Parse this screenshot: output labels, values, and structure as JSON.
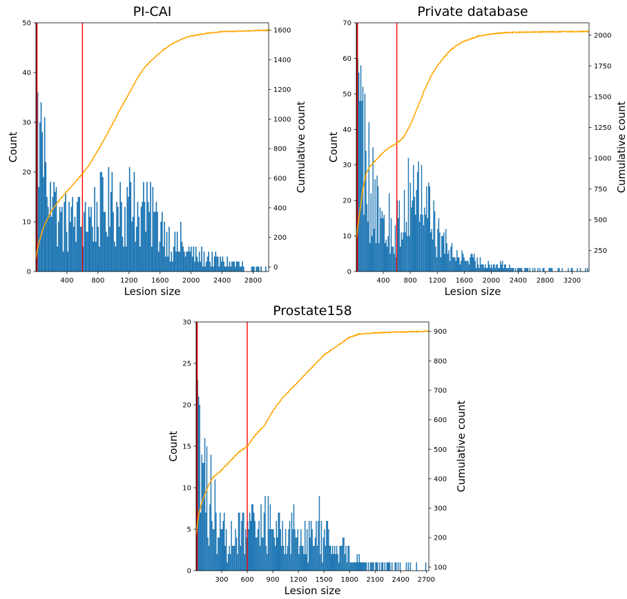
{
  "chart_data": [
    {
      "type": "bar",
      "title": "PI-CAI",
      "xlabel": "Lesion size",
      "ylabel": "Count",
      "y2label": "Cumulative count",
      "xlim": [
        0,
        3000
      ],
      "ylim": [
        0,
        50
      ],
      "y2lim": [
        -30,
        1650
      ],
      "xticks": [
        400,
        800,
        1200,
        1600,
        2000,
        2400,
        2800
      ],
      "yticks": [
        0,
        10,
        20,
        30,
        40,
        50
      ],
      "y2ticks": [
        0,
        200,
        400,
        600,
        800,
        1000,
        1200,
        1400,
        1600
      ],
      "bar_color": "#1f77b4",
      "cumulative_color": "#ffa500",
      "threshold_color": "#ff0000",
      "threshold_lines": [
        0,
        600
      ],
      "bin_width": 15,
      "histogram": [
        [
          0,
          30
        ],
        [
          300,
          10
        ],
        [
          600,
          10
        ],
        [
          900,
          13
        ],
        [
          1200,
          12
        ],
        [
          1500,
          11
        ],
        [
          1800,
          5
        ],
        [
          2100,
          3
        ],
        [
          2400,
          2
        ],
        [
          2700,
          1
        ],
        [
          3000,
          0.8
        ]
      ],
      "spikes": [
        [
          15,
          36
        ],
        [
          45,
          30
        ],
        [
          75,
          28
        ],
        [
          120,
          22
        ],
        [
          180,
          18
        ],
        [
          240,
          16
        ],
        [
          420,
          14
        ],
        [
          540,
          15
        ],
        [
          630,
          14
        ],
        [
          960,
          16
        ],
        [
          1080,
          18
        ],
        [
          1200,
          21
        ],
        [
          1260,
          20
        ],
        [
          1380,
          18
        ],
        [
          1500,
          17
        ],
        [
          1620,
          12
        ],
        [
          1860,
          10
        ],
        [
          2220,
          4
        ]
      ],
      "cumulative": [
        [
          0,
          60
        ],
        [
          30,
          150
        ],
        [
          100,
          270
        ],
        [
          200,
          380
        ],
        [
          300,
          450
        ],
        [
          400,
          510
        ],
        [
          500,
          570
        ],
        [
          600,
          630
        ],
        [
          700,
          700
        ],
        [
          800,
          790
        ],
        [
          900,
          880
        ],
        [
          1000,
          980
        ],
        [
          1100,
          1080
        ],
        [
          1200,
          1170
        ],
        [
          1300,
          1270
        ],
        [
          1400,
          1350
        ],
        [
          1500,
          1400
        ],
        [
          1600,
          1450
        ],
        [
          1700,
          1490
        ],
        [
          1800,
          1520
        ],
        [
          1900,
          1545
        ],
        [
          2000,
          1560
        ],
        [
          2200,
          1580
        ],
        [
          2400,
          1590
        ],
        [
          2700,
          1595
        ],
        [
          3000,
          1600
        ]
      ]
    },
    {
      "type": "bar",
      "title": "Private database",
      "xlabel": "Lesion size",
      "ylabel": "Count",
      "y2label": "Cumulative count",
      "xlim": [
        0,
        3450
      ],
      "ylim": [
        0,
        70
      ],
      "y2lim": [
        80,
        2100
      ],
      "xticks": [
        400,
        800,
        1200,
        1600,
        2000,
        2400,
        2800,
        3200
      ],
      "yticks": [
        0,
        10,
        20,
        30,
        40,
        50,
        60,
        70
      ],
      "y2ticks": [
        250,
        500,
        750,
        1000,
        1250,
        1500,
        1750,
        2000
      ],
      "bar_color": "#1f77b4",
      "cumulative_color": "#ffa500",
      "threshold_color": "#ff0000",
      "threshold_lines": [
        0,
        600
      ],
      "bin_width": 15,
      "histogram": [
        [
          0,
          45
        ],
        [
          200,
          22
        ],
        [
          400,
          10
        ],
        [
          600,
          12
        ],
        [
          800,
          22
        ],
        [
          1000,
          20
        ],
        [
          1200,
          10
        ],
        [
          1400,
          5
        ],
        [
          1700,
          3
        ],
        [
          2000,
          2
        ],
        [
          2400,
          1
        ],
        [
          2800,
          0.5
        ],
        [
          3450,
          0.3
        ]
      ],
      "spikes": [
        [
          15,
          60
        ],
        [
          30,
          56
        ],
        [
          60,
          58
        ],
        [
          90,
          52
        ],
        [
          120,
          50
        ],
        [
          180,
          42
        ],
        [
          240,
          35
        ],
        [
          300,
          27
        ],
        [
          480,
          22
        ],
        [
          840,
          30
        ],
        [
          900,
          28
        ],
        [
          960,
          30
        ],
        [
          1080,
          24
        ],
        [
          1140,
          20
        ],
        [
          1320,
          12
        ]
      ],
      "cumulative": [
        [
          0,
          350
        ],
        [
          40,
          520
        ],
        [
          100,
          760
        ],
        [
          150,
          880
        ],
        [
          200,
          930
        ],
        [
          300,
          990
        ],
        [
          400,
          1050
        ],
        [
          500,
          1090
        ],
        [
          600,
          1120
        ],
        [
          700,
          1170
        ],
        [
          800,
          1270
        ],
        [
          900,
          1400
        ],
        [
          1000,
          1540
        ],
        [
          1100,
          1660
        ],
        [
          1200,
          1750
        ],
        [
          1300,
          1820
        ],
        [
          1400,
          1880
        ],
        [
          1500,
          1920
        ],
        [
          1600,
          1950
        ],
        [
          1700,
          1970
        ],
        [
          1800,
          1990
        ],
        [
          2000,
          2010
        ],
        [
          2200,
          2020
        ],
        [
          2600,
          2025
        ],
        [
          3450,
          2030
        ]
      ]
    },
    {
      "type": "bar",
      "title": "Prostate158",
      "xlabel": "Lesion size",
      "ylabel": "Count",
      "y2label": "Cumulative count",
      "xlim": [
        0,
        2730
      ],
      "ylim": [
        0,
        30
      ],
      "y2lim": [
        88,
        932
      ],
      "xticks": [
        300,
        600,
        900,
        1200,
        1500,
        1800,
        2100,
        2400,
        2700
      ],
      "yticks": [
        0,
        5,
        10,
        15,
        20,
        25,
        30
      ],
      "y2ticks": [
        100,
        200,
        300,
        400,
        500,
        600,
        700,
        800,
        900
      ],
      "bar_color": "#1f77b4",
      "cumulative_color": "#ffa500",
      "threshold_color": "#ff0000",
      "threshold_lines": [
        0,
        600
      ],
      "bin_width": 12,
      "histogram": [
        [
          0,
          16
        ],
        [
          100,
          8
        ],
        [
          200,
          4
        ],
        [
          400,
          4
        ],
        [
          600,
          5
        ],
        [
          900,
          5
        ],
        [
          1200,
          4
        ],
        [
          1500,
          4
        ],
        [
          1800,
          2
        ],
        [
          2000,
          1
        ],
        [
          2300,
          0.7
        ],
        [
          2500,
          0.3
        ],
        [
          2730,
          0
        ]
      ],
      "spikes": [
        [
          12,
          23
        ],
        [
          24,
          21
        ],
        [
          36,
          20
        ],
        [
          60,
          14
        ],
        [
          96,
          16
        ],
        [
          120,
          15
        ],
        [
          168,
          14
        ],
        [
          216,
          11
        ],
        [
          804,
          9
        ],
        [
          840,
          9
        ],
        [
          1440,
          9
        ],
        [
          1140,
          8
        ]
      ],
      "cumulative": [
        [
          0,
          210
        ],
        [
          30,
          280
        ],
        [
          80,
          330
        ],
        [
          150,
          380
        ],
        [
          200,
          405
        ],
        [
          300,
          430
        ],
        [
          400,
          460
        ],
        [
          500,
          490
        ],
        [
          600,
          510
        ],
        [
          700,
          550
        ],
        [
          800,
          580
        ],
        [
          900,
          630
        ],
        [
          1000,
          670
        ],
        [
          1100,
          700
        ],
        [
          1200,
          730
        ],
        [
          1300,
          760
        ],
        [
          1400,
          790
        ],
        [
          1500,
          820
        ],
        [
          1600,
          840
        ],
        [
          1700,
          860
        ],
        [
          1800,
          880
        ],
        [
          1900,
          890
        ],
        [
          2100,
          895
        ],
        [
          2400,
          898
        ],
        [
          2730,
          900
        ]
      ]
    }
  ]
}
